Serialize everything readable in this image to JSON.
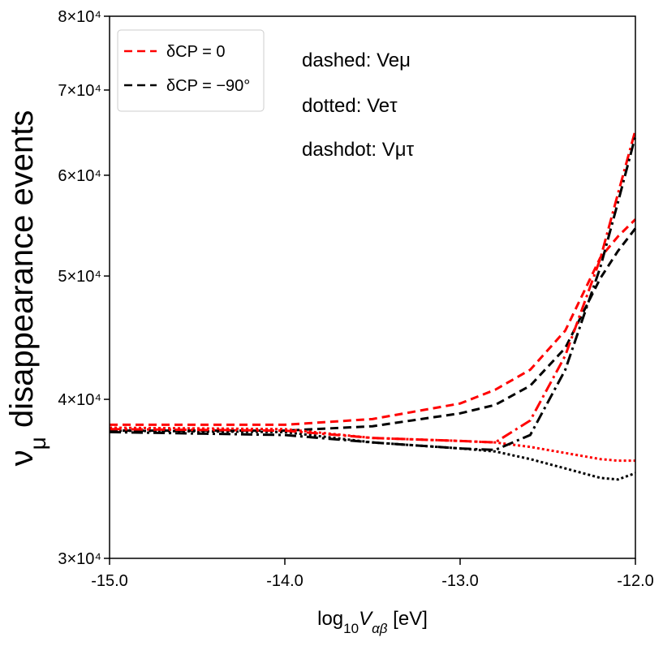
{
  "chart_data": {
    "type": "line",
    "log_y": true,
    "ylabel": [
      "ν",
      "μ",
      " disappearance events"
    ],
    "xlabel": [
      "log",
      "10",
      "V",
      "αβ",
      " [eV]"
    ],
    "annotations": [
      "dashed: Veμ",
      "dotted: Veτ",
      "dashdot: Vμτ"
    ],
    "legend": [
      {
        "name": "δCP = 0",
        "color": "#ff0000",
        "dash": "dashed"
      },
      {
        "name": "δCP = −90°",
        "color": "#000000",
        "dash": "dashed"
      }
    ],
    "x": [
      -15,
      -14.5,
      -14,
      -13.5,
      -13,
      -12.8,
      -12.6,
      -12.4,
      -12.2,
      -12.1,
      -12
    ],
    "series": [
      {
        "color": "#ff0000",
        "dash": "dashed",
        "values": [
          38200,
          38200,
          38200,
          38600,
          39700,
          40700,
          42200,
          45300,
          51700,
          53700,
          55400
        ]
      },
      {
        "color": "#000000",
        "dash": "dashed",
        "values": [
          37800,
          37800,
          37800,
          38100,
          39000,
          39600,
          41000,
          43900,
          49800,
          52300,
          54500
        ]
      },
      {
        "color": "#ff0000",
        "dash": "dotted",
        "values": [
          38000,
          37950,
          37900,
          37300,
          37100,
          37000,
          36700,
          36300,
          35900,
          35800,
          35800
        ]
      },
      {
        "color": "#000000",
        "dash": "dotted",
        "values": [
          37800,
          37750,
          37700,
          37000,
          36600,
          36400,
          35900,
          35300,
          34700,
          34600,
          35000
        ]
      },
      {
        "color": "#ff0000",
        "dash": "dashdot",
        "values": [
          37900,
          37850,
          37800,
          37300,
          37100,
          37000,
          38500,
          43300,
          51600,
          58000,
          65100
        ]
      },
      {
        "color": "#000000",
        "dash": "dashdot",
        "values": [
          37700,
          37600,
          37500,
          37000,
          36600,
          36500,
          37500,
          42200,
          50800,
          57100,
          64400
        ]
      }
    ],
    "xlim": [
      -15,
      -12
    ],
    "xticks": [
      {
        "value": -15,
        "label": "-15.0"
      },
      {
        "value": -14,
        "label": "-14.0"
      },
      {
        "value": -13,
        "label": "-13.0"
      },
      {
        "value": -12,
        "label": "-12.0"
      }
    ],
    "ylim": [
      30000,
      80000
    ],
    "yticks": [
      {
        "value": 30000,
        "label": "3×10⁴"
      },
      {
        "value": 40000,
        "label": "4×10⁴"
      },
      {
        "value": 50000,
        "label": "5×10⁴"
      },
      {
        "value": 60000,
        "label": "6×10⁴"
      },
      {
        "value": 70000,
        "label": "7×10⁴"
      },
      {
        "value": 80000,
        "label": "8×10⁴"
      }
    ]
  }
}
